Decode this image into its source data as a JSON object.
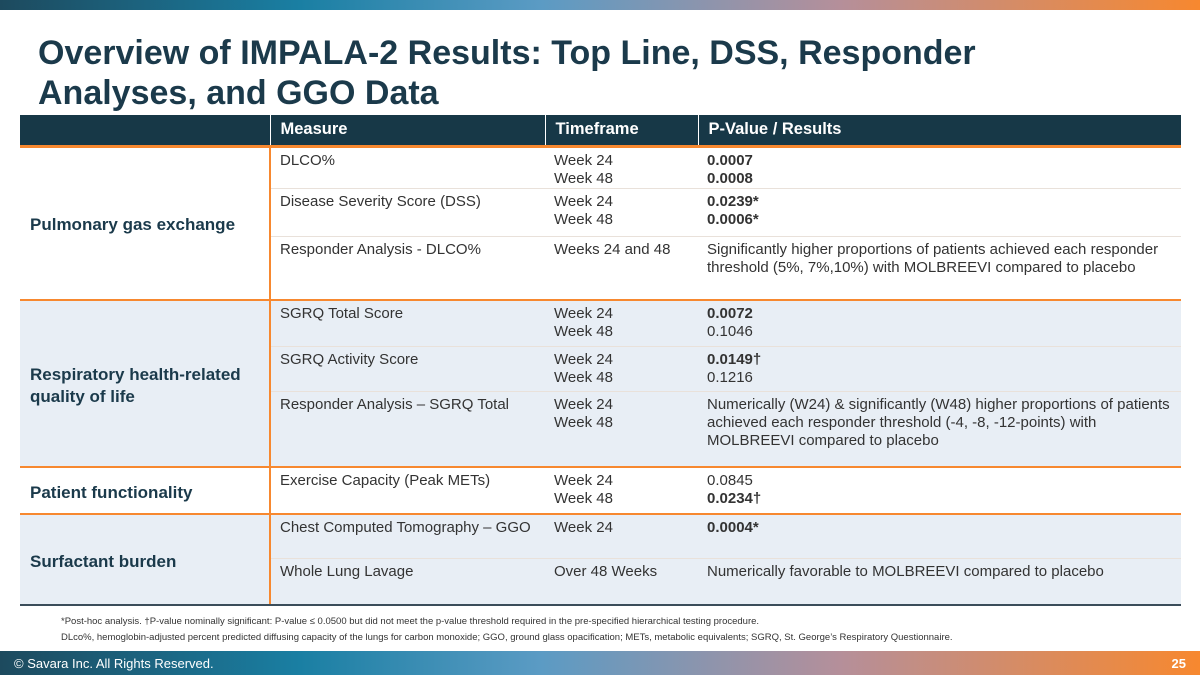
{
  "title": "Overview of IMPALA-2 Results: Top Line, DSS, Responder Analyses, and GGO Data",
  "table": {
    "headers": [
      "",
      "Measure",
      "Timeframe",
      "P-Value / Results"
    ],
    "groups": [
      {
        "category": "Pulmonary gas exchange",
        "rows": [
          {
            "measure": "DLCO%",
            "timeframe": [
              "Week 24",
              "Week 48"
            ],
            "results": [
              "0.0007",
              "0.0008"
            ],
            "bold": [
              true,
              true
            ]
          },
          {
            "measure": "Disease Severity Score (DSS)",
            "timeframe": [
              "Week 24",
              "Week 48"
            ],
            "results": [
              "0.0239*",
              "0.0006*"
            ],
            "bold": [
              true,
              true
            ]
          },
          {
            "measure": "Responder Analysis - DLCO%",
            "timeframe": [
              "Weeks 24 and 48"
            ],
            "results": [
              "Significantly higher proportions of patients achieved each responder threshold (5%, 7%,10%) with MOLBREEVI compared to placebo"
            ],
            "bold": [
              false
            ]
          }
        ]
      },
      {
        "category": "Respiratory health-related quality of life",
        "rows": [
          {
            "measure": "SGRQ Total Score",
            "timeframe": [
              "Week 24",
              "Week 48"
            ],
            "results": [
              "0.0072",
              "0.1046"
            ],
            "bold": [
              true,
              false
            ]
          },
          {
            "measure": "SGRQ Activity Score",
            "timeframe": [
              "Week 24",
              "Week 48"
            ],
            "results": [
              "0.0149†",
              "0.1216"
            ],
            "bold": [
              true,
              false
            ]
          },
          {
            "measure": "Responder Analysis – SGRQ Total",
            "timeframe": [
              "Week 24",
              "Week 48"
            ],
            "results": [
              "Numerically (W24) & significantly (W48) higher proportions of patients achieved each responder threshold (-4, -8, -12-points) with MOLBREEVI compared to placebo"
            ],
            "bold": [
              false
            ]
          }
        ]
      },
      {
        "category": "Patient functionality",
        "rows": [
          {
            "measure": "Exercise Capacity (Peak METs)",
            "timeframe": [
              "Week 24",
              "Week 48"
            ],
            "results": [
              "0.0845",
              "0.0234†"
            ],
            "bold": [
              false,
              true
            ]
          }
        ]
      },
      {
        "category": "Surfactant burden",
        "rows": [
          {
            "measure": "Chest Computed Tomography – GGO",
            "timeframe": [
              "Week 24"
            ],
            "results": [
              "0.0004*"
            ],
            "bold": [
              true
            ]
          },
          {
            "measure": "Whole Lung Lavage",
            "timeframe": [
              "Over 48 Weeks"
            ],
            "results": [
              "Numerically favorable to MOLBREEVI compared to placebo"
            ],
            "bold": [
              false
            ]
          }
        ]
      }
    ]
  },
  "footnotes": [
    "*Post-hoc analysis. †P-value nominally significant: P-value ≤ 0.0500 but did not meet the p-value threshold required in the pre-specified hierarchical testing procedure.",
    "DLco%, hemoglobin-adjusted percent predicted diffusing capacity of the lungs for carbon monoxide; GGO, ground glass opacification; METs, metabolic equivalents; SGRQ, St. George’s Respiratory Questionnaire."
  ],
  "footer": {
    "copyright": "© Savara Inc. All Rights Reserved.",
    "page": "25"
  },
  "colors": {
    "navy": "#173847",
    "orange": "#f7882f",
    "alt_row": "#e8eef5"
  }
}
